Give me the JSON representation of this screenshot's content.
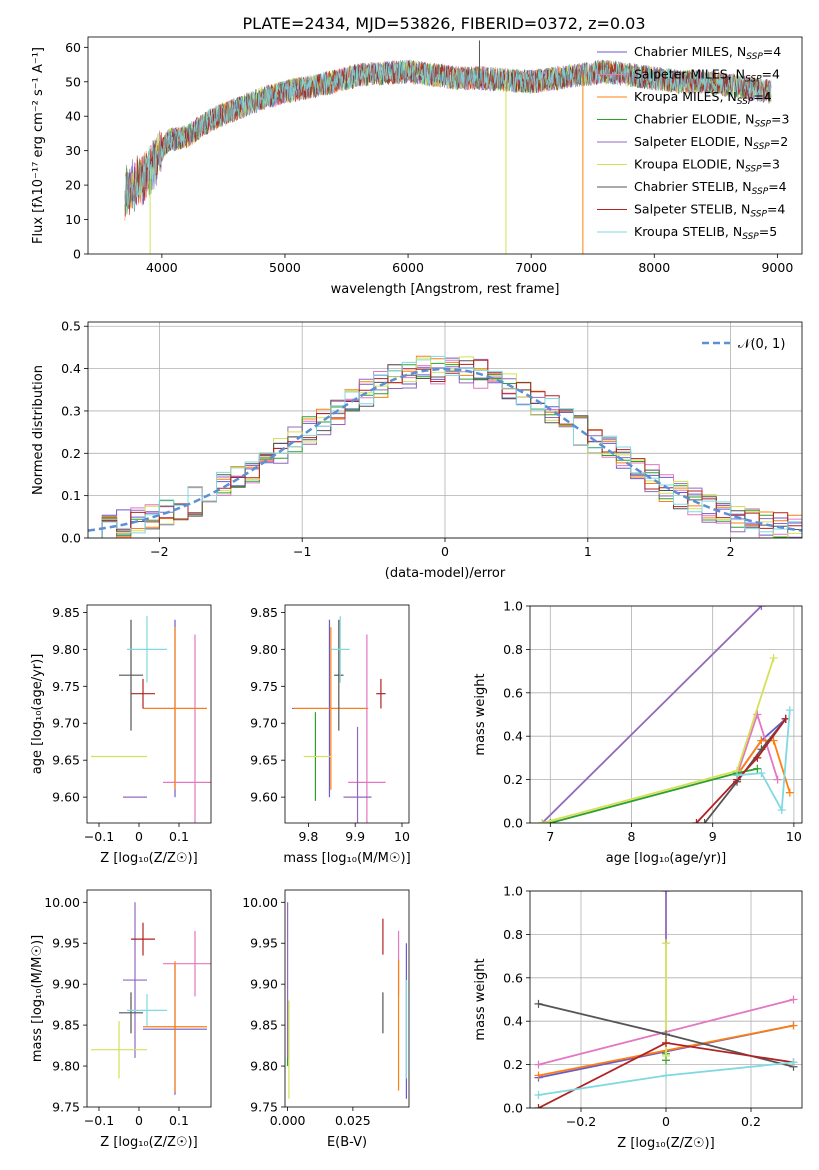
{
  "title": "PLATE=2434, MJD=53826, FIBERID=0372, z=0.03",
  "colors": {
    "Chabrier MILES": "#6a5acd",
    "Salpeter MILES": "#e377c2",
    "Kroupa MILES": "#ff7f0e",
    "Chabrier ELODIE": "#2ca02c",
    "Salpeter ELODIE": "#9467bd",
    "Kroupa ELODIE": "#d4e157",
    "Chabrier STELIB": "#555555",
    "Salpeter STELIB": "#b22222",
    "Kroupa STELIB": "#80d8e0",
    "normal": "#5b8fd6"
  },
  "chart_data": [
    {
      "id": "spectrum",
      "type": "line",
      "xlabel": "wavelength [Angstrom, rest frame]",
      "ylabel": "Flux [fλ10⁻¹⁷ erg cm⁻² s⁻¹ A⁻¹]",
      "xlim": [
        3400,
        9200
      ],
      "ylim": [
        0,
        63
      ],
      "xticks": [
        4000,
        5000,
        6000,
        7000,
        8000,
        9000
      ],
      "yticks": [
        0,
        10,
        20,
        30,
        40,
        50,
        60
      ],
      "data_range": [
        3700,
        8950
      ],
      "continuum": [
        [
          3700,
          18
        ],
        [
          3850,
          22
        ],
        [
          3950,
          27
        ],
        [
          4050,
          33
        ],
        [
          4200,
          34
        ],
        [
          4400,
          39
        ],
        [
          4600,
          42
        ],
        [
          4800,
          45
        ],
        [
          5000,
          47
        ],
        [
          5200,
          48.5
        ],
        [
          5400,
          50
        ],
        [
          5600,
          52
        ],
        [
          5800,
          52.5
        ],
        [
          6000,
          53
        ],
        [
          6200,
          52
        ],
        [
          6400,
          51
        ],
        [
          6600,
          51
        ],
        [
          6800,
          50.5
        ],
        [
          7000,
          50
        ],
        [
          7200,
          51
        ],
        [
          7400,
          52
        ],
        [
          7600,
          53
        ],
        [
          7800,
          52
        ],
        [
          8000,
          51
        ],
        [
          8200,
          50
        ],
        [
          8400,
          50
        ],
        [
          8600,
          49
        ],
        [
          8800,
          48
        ],
        [
          8950,
          47
        ]
      ],
      "legend": [
        "Chabrier MILES, N_SSP=4",
        "Salpeter MILES, N_SSP=4",
        "Kroupa MILES, N_SSP=4",
        "Chabrier ELODIE, N_SSP=3",
        "Salpeter ELODIE, N_SSP=2",
        "Kroupa ELODIE, N_SSP=3",
        "Chabrier STELIB, N_SSP=4",
        "Salpeter STELIB, N_SSP=4",
        "Kroupa STELIB, N_SSP=5"
      ],
      "legend_loc": "upper right"
    },
    {
      "id": "residuals",
      "type": "histogram",
      "xlabel": "(data-model)/error",
      "ylabel": "Normed distribution",
      "xlim": [
        -2.5,
        2.5
      ],
      "ylim": [
        0,
        0.51
      ],
      "xticks": [
        -2,
        -1,
        0,
        1,
        2
      ],
      "yticks": [
        0.0,
        0.1,
        0.2,
        0.3,
        0.4,
        0.5
      ],
      "grid": true,
      "legend": [
        "𝒩(0, 1)"
      ],
      "legend_loc": "upper right"
    },
    {
      "id": "age-vs-Z",
      "type": "errorbar",
      "xlabel": "Z [log₁₀(Z/Z☉)]",
      "ylabel": "age  [log₁₀(age/yr)]",
      "xlim": [
        -0.13,
        0.18
      ],
      "ylim": [
        9.565,
        9.86
      ],
      "xticks": [
        -0.1,
        0.0,
        0.1
      ],
      "yticks": [
        9.6,
        9.65,
        9.7,
        9.75,
        9.8,
        9.85
      ],
      "points": [
        {
          "model": "Chabrier MILES",
          "x": 0.09,
          "y": 9.72,
          "xerr": 0.08,
          "yerr": 0.12
        },
        {
          "model": "Salpeter MILES",
          "x": 0.14,
          "y": 9.62,
          "xerr": 0.08,
          "yerr": 0.2
        },
        {
          "model": "Kroupa MILES",
          "x": 0.09,
          "y": 9.72,
          "xerr": 0.08,
          "yerr": 0.11
        },
        {
          "model": "Chabrier ELODIE",
          "x": -0.07,
          "y": 9.655,
          "xerr": 0.0,
          "yerr": 0.0
        },
        {
          "model": "Salpeter ELODIE",
          "x": -0.01,
          "y": 9.6,
          "xerr": 0.03,
          "yerr": 0.0
        },
        {
          "model": "Kroupa ELODIE",
          "x": -0.05,
          "y": 9.655,
          "xerr": 0.07,
          "yerr": 0.0
        },
        {
          "model": "Chabrier STELIB",
          "x": -0.02,
          "y": 9.765,
          "xerr": 0.03,
          "yerr": 0.075
        },
        {
          "model": "Salpeter STELIB",
          "x": 0.01,
          "y": 9.74,
          "xerr": 0.03,
          "yerr": 0.02
        },
        {
          "model": "Kroupa STELIB",
          "x": 0.02,
          "y": 9.8,
          "xerr": 0.05,
          "yerr": 0.045
        }
      ]
    },
    {
      "id": "age-vs-mass",
      "type": "errorbar",
      "xlabel": "mass [log₁₀(M/M☉)]",
      "ylabel": "",
      "xlim": [
        9.75,
        10.015
      ],
      "ylim": [
        9.565,
        9.86
      ],
      "xticks": [
        9.8,
        9.9,
        10.0
      ],
      "yticks": [
        9.6,
        9.65,
        9.7,
        9.75,
        9.8,
        9.85
      ],
      "points": [
        {
          "model": "Chabrier MILES",
          "x": 9.845,
          "y": 9.72,
          "xerr": 0.08,
          "yerr": 0.12
        },
        {
          "model": "Salpeter MILES",
          "x": 9.925,
          "y": 9.62,
          "xerr": 0.04,
          "yerr": 0.2
        },
        {
          "model": "Kroupa MILES",
          "x": 9.848,
          "y": 9.72,
          "xerr": 0.08,
          "yerr": 0.11
        },
        {
          "model": "Chabrier ELODIE",
          "x": 9.815,
          "y": 9.655,
          "xerr": 0.0,
          "yerr": 0.06
        },
        {
          "model": "Salpeter ELODIE",
          "x": 9.905,
          "y": 9.6,
          "xerr": 0.03,
          "yerr": 0.095
        },
        {
          "model": "Kroupa ELODIE",
          "x": 9.82,
          "y": 9.655,
          "xerr": 0.03,
          "yerr": 0.0
        },
        {
          "model": "Chabrier STELIB",
          "x": 9.865,
          "y": 9.765,
          "xerr": 0.01,
          "yerr": 0.075
        },
        {
          "model": "Salpeter STELIB",
          "x": 9.955,
          "y": 9.74,
          "xerr": 0.01,
          "yerr": 0.02
        },
        {
          "model": "Kroupa STELIB",
          "x": 9.868,
          "y": 9.8,
          "xerr": 0.02,
          "yerr": 0.045
        }
      ]
    },
    {
      "id": "weight-vs-age",
      "type": "line",
      "xlabel": "age  [log₁₀(age/yr)]",
      "ylabel": "mass weight",
      "xlim": [
        6.75,
        10.1
      ],
      "ylim": [
        0,
        1
      ],
      "xticks": [
        7,
        8,
        9,
        10
      ],
      "yticks": [
        0.0,
        0.2,
        0.4,
        0.6,
        0.8,
        1.0
      ],
      "grid": true,
      "series": [
        {
          "model": "Chabrier MILES",
          "x": [
            9.3,
            9.6,
            9.9
          ],
          "y": [
            0.22,
            0.38,
            0.48
          ]
        },
        {
          "model": "Salpeter MILES",
          "x": [
            9.3,
            9.55,
            9.8
          ],
          "y": [
            0.22,
            0.5,
            0.2
          ]
        },
        {
          "model": "Kroupa MILES",
          "x": [
            9.3,
            9.6,
            9.75,
            9.95
          ],
          "y": [
            0.22,
            0.38,
            0.38,
            0.14
          ]
        },
        {
          "model": "Chabrier ELODIE",
          "x": [
            7.0,
            9.3,
            9.55
          ],
          "y": [
            0.0,
            0.23,
            0.25
          ]
        },
        {
          "model": "Salpeter ELODIE",
          "x": [
            6.9,
            9.6
          ],
          "y": [
            0.0,
            1.0
          ]
        },
        {
          "model": "Kroupa ELODIE",
          "x": [
            6.9,
            9.3,
            9.75
          ],
          "y": [
            0.0,
            0.24,
            0.76
          ]
        },
        {
          "model": "Chabrier STELIB",
          "x": [
            8.9,
            9.3,
            9.6,
            9.9
          ],
          "y": [
            0.0,
            0.19,
            0.34,
            0.48
          ]
        },
        {
          "model": "Salpeter STELIB",
          "x": [
            8.8,
            9.3,
            9.55,
            9.9
          ],
          "y": [
            0.0,
            0.2,
            0.3,
            0.48
          ]
        },
        {
          "model": "Kroupa STELIB",
          "x": [
            9.3,
            9.6,
            9.85,
            9.95
          ],
          "y": [
            0.22,
            0.23,
            0.06,
            0.52
          ]
        }
      ]
    },
    {
      "id": "mass-vs-Z",
      "type": "errorbar",
      "xlabel": "Z [log₁₀(Z/Z☉)]",
      "ylabel": "mass [log₁₀(M/M☉)]",
      "xlim": [
        -0.13,
        0.18
      ],
      "ylim": [
        9.75,
        10.015
      ],
      "xticks": [
        -0.1,
        0.0,
        0.1
      ],
      "yticks": [
        9.75,
        9.8,
        9.85,
        9.9,
        9.95,
        10.0
      ],
      "points": [
        {
          "model": "Chabrier MILES",
          "x": 0.09,
          "y": 9.845,
          "xerr": 0.08,
          "yerr": 0.08
        },
        {
          "model": "Salpeter MILES",
          "x": 0.14,
          "y": 9.925,
          "xerr": 0.08,
          "yerr": 0.04
        },
        {
          "model": "Kroupa MILES",
          "x": 0.09,
          "y": 9.848,
          "xerr": 0.08,
          "yerr": 0.08
        },
        {
          "model": "Chabrier ELODIE",
          "x": -0.07,
          "y": 9.815,
          "xerr": 0.0,
          "yerr": 0.0
        },
        {
          "model": "Salpeter ELODIE",
          "x": -0.01,
          "y": 9.905,
          "xerr": 0.03,
          "yerr": 0.095
        },
        {
          "model": "Kroupa ELODIE",
          "x": -0.05,
          "y": 9.82,
          "xerr": 0.07,
          "yerr": 0.035
        },
        {
          "model": "Chabrier STELIB",
          "x": -0.02,
          "y": 9.865,
          "xerr": 0.03,
          "yerr": 0.025
        },
        {
          "model": "Salpeter STELIB",
          "x": 0.01,
          "y": 9.955,
          "xerr": 0.03,
          "yerr": 0.02
        },
        {
          "model": "Kroupa STELIB",
          "x": 0.02,
          "y": 9.868,
          "xerr": 0.05,
          "yerr": 0.02
        }
      ]
    },
    {
      "id": "mass-vs-ebv",
      "type": "errorbar",
      "xlabel": "E(B-V)",
      "ylabel": "",
      "xlim": [
        -0.001,
        0.0465
      ],
      "ylim": [
        9.75,
        10.015
      ],
      "xticks": [
        0.0,
        0.025
      ],
      "xticklabels": [
        "0.000",
        "0.025"
      ],
      "yticks": [
        9.75,
        9.8,
        9.85,
        9.9,
        9.95,
        10.0
      ],
      "points": [
        {
          "model": "Chabrier MILES",
          "x": 0.0455,
          "y": 9.855,
          "xerr": 0.0,
          "yerr": 0.095
        },
        {
          "model": "Salpeter MILES",
          "x": 0.0425,
          "y": 9.925,
          "xerr": 0.0,
          "yerr": 0.04
        },
        {
          "model": "Kroupa MILES",
          "x": 0.0425,
          "y": 9.85,
          "xerr": 0.0,
          "yerr": 0.08
        },
        {
          "model": "Chabrier ELODIE",
          "x": 0.0,
          "y": 9.84,
          "xerr": 0.0,
          "yerr": 0.04
        },
        {
          "model": "Salpeter ELODIE",
          "x": 0.0,
          "y": 9.905,
          "xerr": 0.0,
          "yerr": 0.095
        },
        {
          "model": "Kroupa ELODIE",
          "x": 0.0005,
          "y": 9.82,
          "xerr": 0.0,
          "yerr": 0.06
        },
        {
          "model": "Chabrier STELIB",
          "x": 0.0365,
          "y": 9.865,
          "xerr": 0.0,
          "yerr": 0.025
        },
        {
          "model": "Salpeter STELIB",
          "x": 0.0365,
          "y": 9.958,
          "xerr": 0.0,
          "yerr": 0.022
        },
        {
          "model": "Kroupa STELIB",
          "x": 0.0455,
          "y": 9.845,
          "xerr": 0.0,
          "yerr": 0.06
        }
      ]
    },
    {
      "id": "weight-vs-Z",
      "type": "line",
      "xlabel": "Z [log₁₀(Z/Z☉)]",
      "ylabel": "mass weight",
      "xlim": [
        -0.32,
        0.32
      ],
      "ylim": [
        0,
        1
      ],
      "xticks": [
        -0.2,
        0.0,
        0.2
      ],
      "yticks": [
        0.0,
        0.2,
        0.4,
        0.6,
        0.8,
        1.0
      ],
      "grid": true,
      "series": [
        {
          "model": "Chabrier MILES",
          "x": [
            -0.3,
            0.3
          ],
          "y": [
            0.14,
            0.38
          ]
        },
        {
          "model": "Salpeter MILES",
          "x": [
            -0.3,
            0.3
          ],
          "y": [
            0.2,
            0.5
          ]
        },
        {
          "model": "Kroupa MILES",
          "x": [
            -0.3,
            0.3
          ],
          "y": [
            0.15,
            0.38
          ]
        },
        {
          "model": "Chabrier ELODIE",
          "x": [
            0.0,
            0.0
          ],
          "y": [
            0.22,
            0.25
          ]
        },
        {
          "model": "Salpeter ELODIE",
          "x": [
            0.0,
            0.0
          ],
          "y": [
            0.76,
            1.0
          ]
        },
        {
          "model": "Kroupa ELODIE",
          "x": [
            0.0,
            0.0
          ],
          "y": [
            0.24,
            0.76
          ]
        },
        {
          "model": "Chabrier STELIB",
          "x": [
            -0.3,
            0.0,
            0.3
          ],
          "y": [
            0.48,
            0.34,
            0.19
          ]
        },
        {
          "model": "Salpeter STELIB",
          "x": [
            -0.3,
            0.0,
            0.3
          ],
          "y": [
            0.0,
            0.3,
            0.21
          ]
        },
        {
          "model": "Kroupa STELIB",
          "x": [
            -0.3,
            0.0,
            0.3
          ],
          "y": [
            0.06,
            0.15,
            0.21
          ]
        }
      ]
    }
  ]
}
